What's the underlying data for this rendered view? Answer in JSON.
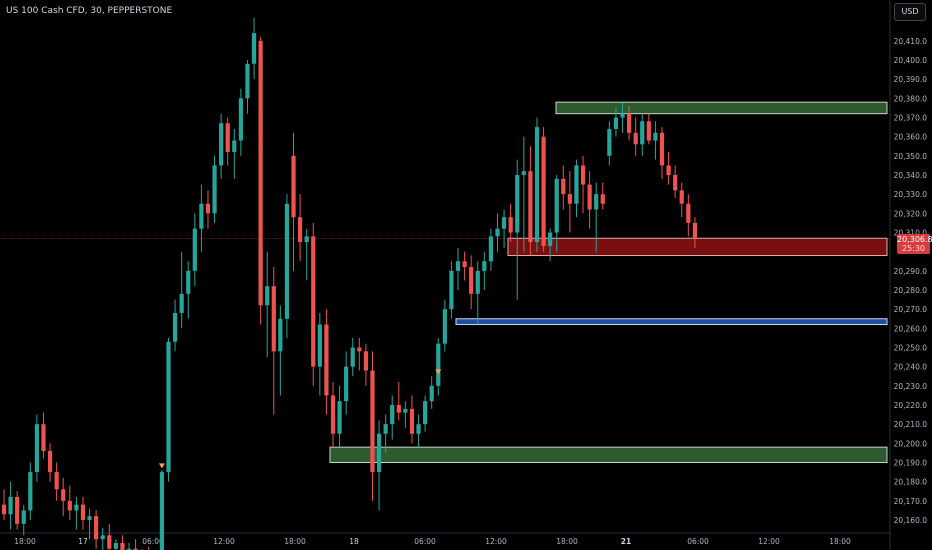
{
  "header": {
    "symbol_title": "US 100 Cash CFD, 30, PEPPERSTONE",
    "currency_button": "USD"
  },
  "last_price": {
    "value": "20,306.8",
    "countdown": "25:30"
  },
  "colors": {
    "up": "#26a69a",
    "down": "#ef5350",
    "zone_green": "#2e5a30",
    "zone_red": "#7a0f0f",
    "zone_blue": "#1e4fa0",
    "marker": "#f5a05a"
  },
  "chart_data": {
    "type": "candlestick",
    "interval": "30",
    "y_axis": {
      "ticks": [
        "20,410.0",
        "20,400.0",
        "20,390.0",
        "20,380.0",
        "20,370.0",
        "20,360.0",
        "20,350.0",
        "20,340.0",
        "20,330.0",
        "20,320.0",
        "20,310.0",
        "20,290.0",
        "20,280.0",
        "20,270.0",
        "20,260.0",
        "20,250.0",
        "20,240.0",
        "20,230.0",
        "20,220.0",
        "20,210.0",
        "20,200.0",
        "20,190.0",
        "20,180.0",
        "20,170.0",
        "20,160.0"
      ],
      "ylim": [
        20155,
        20420
      ]
    },
    "x_axis": {
      "ticks": [
        "18:00",
        "17",
        "06:00",
        "12:00",
        "18:00",
        "18",
        "06:00",
        "12:00",
        "18:00",
        "21",
        "06:00",
        "12:00",
        "18:00"
      ]
    },
    "zones": [
      {
        "color": "green",
        "low": 20372,
        "high": 20378
      },
      {
        "color": "red",
        "low": 20298,
        "high": 20307
      },
      {
        "color": "blue",
        "low": 20262,
        "high": 20265
      },
      {
        "color": "green",
        "low": 20190,
        "high": 20198
      }
    ],
    "candles": [
      {
        "o": 20168,
        "h": 20176,
        "l": 20160,
        "c": 20163
      },
      {
        "o": 20163,
        "h": 20180,
        "l": 20155,
        "c": 20172
      },
      {
        "o": 20172,
        "h": 20175,
        "l": 20155,
        "c": 20158
      },
      {
        "o": 20158,
        "h": 20168,
        "l": 20152,
        "c": 20165
      },
      {
        "o": 20165,
        "h": 20190,
        "l": 20160,
        "c": 20185
      },
      {
        "o": 20185,
        "h": 20215,
        "l": 20180,
        "c": 20210
      },
      {
        "o": 20210,
        "h": 20216,
        "l": 20192,
        "c": 20196
      },
      {
        "o": 20196,
        "h": 20200,
        "l": 20180,
        "c": 20185
      },
      {
        "o": 20185,
        "h": 20190,
        "l": 20170,
        "c": 20176
      },
      {
        "o": 20176,
        "h": 20182,
        "l": 20162,
        "c": 20170
      },
      {
        "o": 20170,
        "h": 20178,
        "l": 20160,
        "c": 20165
      },
      {
        "o": 20165,
        "h": 20172,
        "l": 20155,
        "c": 20168
      },
      {
        "o": 20168,
        "h": 20172,
        "l": 20155,
        "c": 20160
      },
      {
        "o": 20160,
        "h": 20166,
        "l": 20150,
        "c": 20162
      },
      {
        "o": 20162,
        "h": 20165,
        "l": 20145,
        "c": 20150
      },
      {
        "o": 20150,
        "h": 20156,
        "l": 20140,
        "c": 20152
      },
      {
        "o": 20152,
        "h": 20158,
        "l": 20140,
        "c": 20145
      },
      {
        "o": 20145,
        "h": 20150,
        "l": 20135,
        "c": 20148
      },
      {
        "o": 20148,
        "h": 20152,
        "l": 20138,
        "c": 20142
      },
      {
        "o": 20142,
        "h": 20148,
        "l": 20130,
        "c": 20145
      },
      {
        "o": 20145,
        "h": 20150,
        "l": 20132,
        "c": 20138
      },
      {
        "o": 20138,
        "h": 20145,
        "l": 20130,
        "c": 20140
      },
      {
        "o": 20140,
        "h": 20146,
        "l": 20130,
        "c": 20135
      },
      {
        "o": 20135,
        "h": 20142,
        "l": 20128,
        "c": 20140
      },
      {
        "o": 20140,
        "h": 20186,
        "l": 20130,
        "c": 20185
      },
      {
        "o": 20185,
        "h": 20255,
        "l": 20180,
        "c": 20253
      },
      {
        "o": 20253,
        "h": 20275,
        "l": 20248,
        "c": 20268
      },
      {
        "o": 20268,
        "h": 20300,
        "l": 20260,
        "c": 20278
      },
      {
        "o": 20278,
        "h": 20295,
        "l": 20265,
        "c": 20290
      },
      {
        "o": 20290,
        "h": 20320,
        "l": 20282,
        "c": 20312
      },
      {
        "o": 20312,
        "h": 20335,
        "l": 20300,
        "c": 20325
      },
      {
        "o": 20325,
        "h": 20332,
        "l": 20312,
        "c": 20320
      },
      {
        "o": 20320,
        "h": 20350,
        "l": 20315,
        "c": 20345
      },
      {
        "o": 20345,
        "h": 20372,
        "l": 20338,
        "c": 20367
      },
      {
        "o": 20367,
        "h": 20370,
        "l": 20345,
        "c": 20352
      },
      {
        "o": 20352,
        "h": 20364,
        "l": 20338,
        "c": 20358
      },
      {
        "o": 20358,
        "h": 20385,
        "l": 20350,
        "c": 20380
      },
      {
        "o": 20380,
        "h": 20400,
        "l": 20372,
        "c": 20398
      },
      {
        "o": 20398,
        "h": 20422,
        "l": 20390,
        "c": 20414
      },
      {
        "o": 20410,
        "h": 20412,
        "l": 20262,
        "c": 20272
      },
      {
        "o": 20272,
        "h": 20300,
        "l": 20245,
        "c": 20282
      },
      {
        "o": 20282,
        "h": 20292,
        "l": 20215,
        "c": 20248
      },
      {
        "o": 20248,
        "h": 20272,
        "l": 20225,
        "c": 20265
      },
      {
        "o": 20265,
        "h": 20330,
        "l": 20255,
        "c": 20325
      },
      {
        "o": 20350,
        "h": 20362,
        "l": 20290,
        "c": 20318
      },
      {
        "o": 20318,
        "h": 20330,
        "l": 20295,
        "c": 20305
      },
      {
        "o": 20305,
        "h": 20312,
        "l": 20285,
        "c": 20308
      },
      {
        "o": 20308,
        "h": 20315,
        "l": 20230,
        "c": 20240
      },
      {
        "o": 20240,
        "h": 20268,
        "l": 20225,
        "c": 20262
      },
      {
        "o": 20262,
        "h": 20270,
        "l": 20215,
        "c": 20225
      },
      {
        "o": 20225,
        "h": 20232,
        "l": 20198,
        "c": 20205
      },
      {
        "o": 20205,
        "h": 20230,
        "l": 20198,
        "c": 20222
      },
      {
        "o": 20222,
        "h": 20248,
        "l": 20215,
        "c": 20240
      },
      {
        "o": 20240,
        "h": 20255,
        "l": 20235,
        "c": 20250
      },
      {
        "o": 20250,
        "h": 20255,
        "l": 20238,
        "c": 20248
      },
      {
        "o": 20248,
        "h": 20252,
        "l": 20230,
        "c": 20238
      },
      {
        "o": 20238,
        "h": 20248,
        "l": 20170,
        "c": 20185
      },
      {
        "o": 20185,
        "h": 20212,
        "l": 20165,
        "c": 20205
      },
      {
        "o": 20205,
        "h": 20215,
        "l": 20195,
        "c": 20210
      },
      {
        "o": 20210,
        "h": 20225,
        "l": 20202,
        "c": 20220
      },
      {
        "o": 20220,
        "h": 20232,
        "l": 20212,
        "c": 20216
      },
      {
        "o": 20216,
        "h": 20222,
        "l": 20208,
        "c": 20218
      },
      {
        "o": 20218,
        "h": 20225,
        "l": 20200,
        "c": 20205
      },
      {
        "o": 20205,
        "h": 20215,
        "l": 20198,
        "c": 20210
      },
      {
        "o": 20210,
        "h": 20225,
        "l": 20206,
        "c": 20222
      },
      {
        "o": 20222,
        "h": 20235,
        "l": 20218,
        "c": 20230
      },
      {
        "o": 20230,
        "h": 20255,
        "l": 20225,
        "c": 20252
      },
      {
        "o": 20252,
        "h": 20275,
        "l": 20248,
        "c": 20270
      },
      {
        "o": 20270,
        "h": 20295,
        "l": 20265,
        "c": 20290
      },
      {
        "o": 20290,
        "h": 20302,
        "l": 20280,
        "c": 20295
      },
      {
        "o": 20295,
        "h": 20300,
        "l": 20285,
        "c": 20292
      },
      {
        "o": 20292,
        "h": 20298,
        "l": 20270,
        "c": 20278
      },
      {
        "o": 20278,
        "h": 20295,
        "l": 20262,
        "c": 20290
      },
      {
        "o": 20290,
        "h": 20300,
        "l": 20280,
        "c": 20295
      },
      {
        "o": 20295,
        "h": 20312,
        "l": 20290,
        "c": 20308
      },
      {
        "o": 20308,
        "h": 20320,
        "l": 20300,
        "c": 20312
      },
      {
        "o": 20312,
        "h": 20322,
        "l": 20302,
        "c": 20318
      },
      {
        "o": 20318,
        "h": 20325,
        "l": 20305,
        "c": 20310
      },
      {
        "o": 20310,
        "h": 20348,
        "l": 20275,
        "c": 20340
      },
      {
        "o": 20340,
        "h": 20360,
        "l": 20300,
        "c": 20342
      },
      {
        "o": 20342,
        "h": 20355,
        "l": 20298,
        "c": 20305
      },
      {
        "o": 20305,
        "h": 20370,
        "l": 20300,
        "c": 20365
      },
      {
        "o": 20360,
        "h": 20365,
        "l": 20300,
        "c": 20303
      },
      {
        "o": 20303,
        "h": 20312,
        "l": 20295,
        "c": 20310
      },
      {
        "o": 20310,
        "h": 20340,
        "l": 20300,
        "c": 20338
      },
      {
        "o": 20338,
        "h": 20345,
        "l": 20322,
        "c": 20330
      },
      {
        "o": 20330,
        "h": 20342,
        "l": 20310,
        "c": 20325
      },
      {
        "o": 20325,
        "h": 20348,
        "l": 20318,
        "c": 20345
      },
      {
        "o": 20345,
        "h": 20350,
        "l": 20320,
        "c": 20335
      },
      {
        "o": 20335,
        "h": 20342,
        "l": 20312,
        "c": 20322
      },
      {
        "o": 20322,
        "h": 20336,
        "l": 20300,
        "c": 20330
      },
      {
        "o": 20330,
        "h": 20336,
        "l": 20322,
        "c": 20325
      },
      {
        "o": 20350,
        "h": 20368,
        "l": 20345,
        "c": 20364
      },
      {
        "o": 20364,
        "h": 20375,
        "l": 20360,
        "c": 20370
      },
      {
        "o": 20370,
        "h": 20378,
        "l": 20362,
        "c": 20372
      },
      {
        "o": 20372,
        "h": 20376,
        "l": 20358,
        "c": 20362
      },
      {
        "o": 20362,
        "h": 20370,
        "l": 20350,
        "c": 20356
      },
      {
        "o": 20356,
        "h": 20372,
        "l": 20350,
        "c": 20368
      },
      {
        "o": 20368,
        "h": 20372,
        "l": 20356,
        "c": 20358
      },
      {
        "o": 20358,
        "h": 20368,
        "l": 20348,
        "c": 20362
      },
      {
        "o": 20362,
        "h": 20365,
        "l": 20338,
        "c": 20345
      },
      {
        "o": 20345,
        "h": 20352,
        "l": 20335,
        "c": 20340
      },
      {
        "o": 20340,
        "h": 20345,
        "l": 20328,
        "c": 20332
      },
      {
        "o": 20332,
        "h": 20336,
        "l": 20318,
        "c": 20325
      },
      {
        "o": 20325,
        "h": 20330,
        "l": 20308,
        "c": 20315
      },
      {
        "o": 20315,
        "h": 20318,
        "l": 20302,
        "c": 20307
      }
    ],
    "markers": [
      {
        "candle": 24,
        "price": 20188
      },
      {
        "candle": 66,
        "price": 20237
      }
    ]
  }
}
